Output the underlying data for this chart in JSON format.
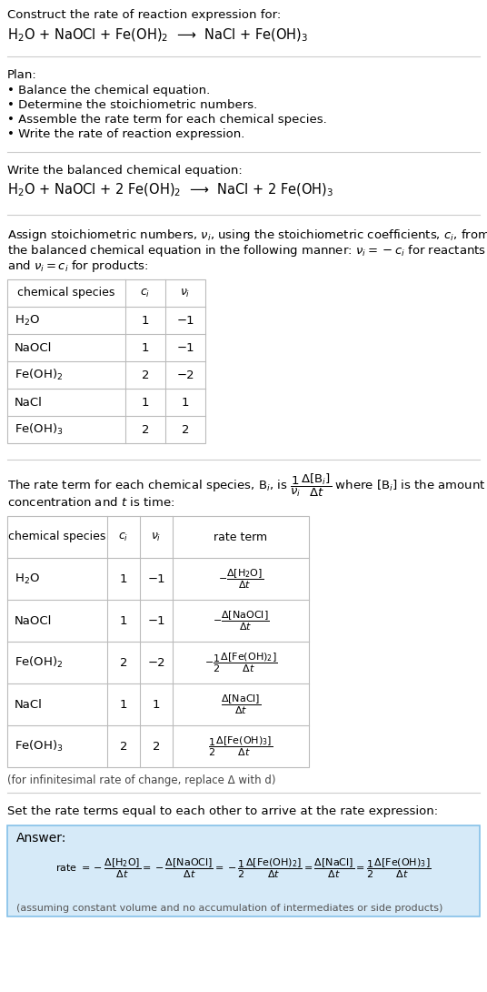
{
  "title_line1": "Construct the rate of reaction expression for:",
  "title_line2": "H$_2$O + NaOCl + Fe(OH)$_2$  ⟶  NaCl + Fe(OH)$_3$",
  "plan_header": "Plan:",
  "plan_items": [
    "• Balance the chemical equation.",
    "• Determine the stoichiometric numbers.",
    "• Assemble the rate term for each chemical species.",
    "• Write the rate of reaction expression."
  ],
  "balanced_header": "Write the balanced chemical equation:",
  "balanced_eq": "H$_2$O + NaOCl + 2 Fe(OH)$_2$  ⟶  NaCl + 2 Fe(OH)$_3$",
  "stoich_intro_parts": [
    "Assign stoichiometric numbers, $\\nu_i$, using the stoichiometric coefficients, $c_i$, from",
    "the balanced chemical equation in the following manner: $\\nu_i = -c_i$ for reactants",
    "and $\\nu_i = c_i$ for products:"
  ],
  "table1_headers": [
    "chemical species",
    "$c_i$",
    "$\\nu_i$"
  ],
  "table1_rows": [
    [
      "H$_2$O",
      "1",
      "−1"
    ],
    [
      "NaOCl",
      "1",
      "−1"
    ],
    [
      "Fe(OH)$_2$",
      "2",
      "−2"
    ],
    [
      "NaCl",
      "1",
      "1"
    ],
    [
      "Fe(OH)$_3$",
      "2",
      "2"
    ]
  ],
  "rate_intro_line1": "The rate term for each chemical species, B$_i$, is $\\dfrac{1}{\\nu_i}\\dfrac{\\Delta[\\mathrm{B}_i]}{\\Delta t}$ where [B$_i$] is the amount",
  "rate_intro_line2": "concentration and $t$ is time:",
  "table2_headers": [
    "chemical species",
    "$c_i$",
    "$\\nu_i$",
    "rate term"
  ],
  "table2_rows": [
    [
      "H$_2$O",
      "1",
      "−1",
      "$-\\dfrac{\\Delta[\\mathrm{H_2O}]}{\\Delta t}$"
    ],
    [
      "NaOCl",
      "1",
      "−1",
      "$-\\dfrac{\\Delta[\\mathrm{NaOCl}]}{\\Delta t}$"
    ],
    [
      "Fe(OH)$_2$",
      "2",
      "−2",
      "$-\\dfrac{1}{2}\\dfrac{\\Delta[\\mathrm{Fe(OH)_2}]}{\\Delta t}$"
    ],
    [
      "NaCl",
      "1",
      "1",
      "$\\dfrac{\\Delta[\\mathrm{NaCl}]}{\\Delta t}$"
    ],
    [
      "Fe(OH)$_3$",
      "2",
      "2",
      "$\\dfrac{1}{2}\\dfrac{\\Delta[\\mathrm{Fe(OH)_3}]}{\\Delta t}$"
    ]
  ],
  "infinitesimal_note": "(for infinitesimal rate of change, replace Δ with d)",
  "answer_intro": "Set the rate terms equal to each other to arrive at the rate expression:",
  "answer_box_color": "#d6eaf8",
  "answer_border_color": "#85c1e9",
  "answer_label": "Answer:",
  "rate_expr": "rate $= -\\dfrac{\\Delta[\\mathrm{H_2O}]}{\\Delta t} = -\\dfrac{\\Delta[\\mathrm{NaOCl}]}{\\Delta t} = -\\dfrac{1}{2}\\dfrac{\\Delta[\\mathrm{Fe(OH)_2}]}{\\Delta t} = \\dfrac{\\Delta[\\mathrm{NaCl}]}{\\Delta t} = \\dfrac{1}{2}\\dfrac{\\Delta[\\mathrm{Fe(OH)_3}]}{\\Delta t}$",
  "assuming_note": "(assuming constant volume and no accumulation of intermediates or side products)",
  "bg_color": "#ffffff",
  "text_color": "#000000",
  "table_border_color": "#bbbbbb",
  "sep_color": "#cccccc",
  "note_color": "#444444"
}
